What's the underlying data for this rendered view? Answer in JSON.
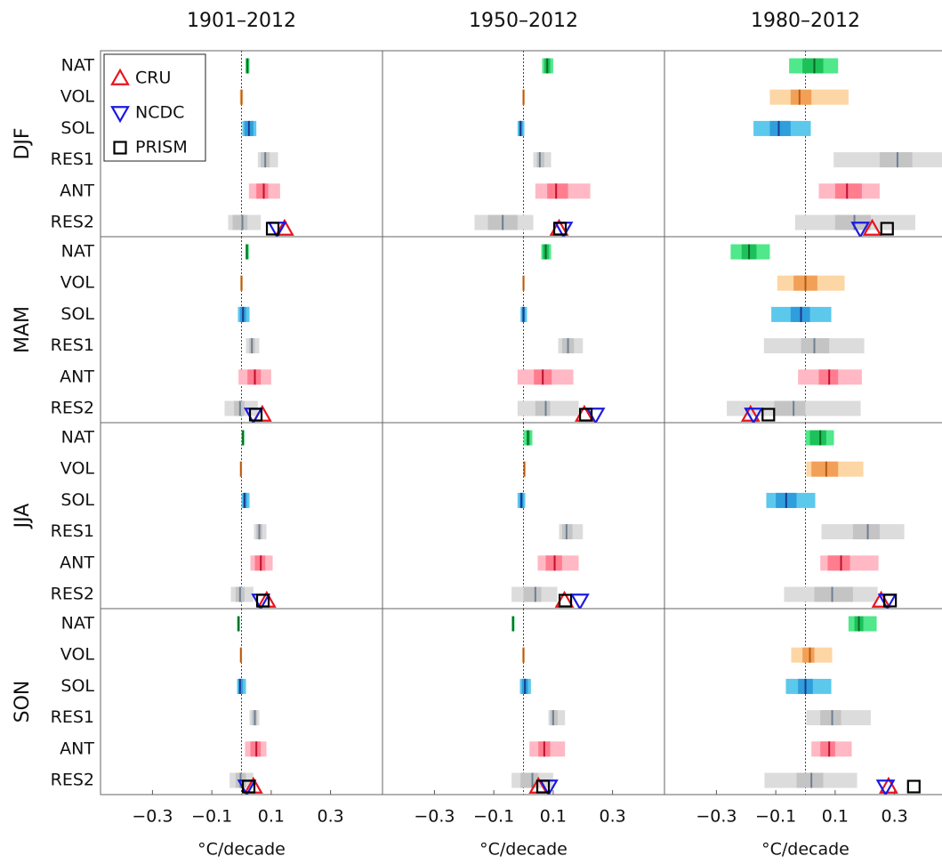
{
  "chart_data": {
    "type": "range",
    "columns": [
      "1901–2012",
      "1950–2012",
      "1980–2012"
    ],
    "rows": [
      "DJF",
      "MAM",
      "JJA",
      "SON"
    ],
    "factors": [
      "NAT",
      "VOL",
      "SOL",
      "RES1",
      "ANT",
      "RES2"
    ],
    "factor_colors": [
      [
        "#4fe88a",
        "#1cc159",
        "#0a6a24"
      ],
      [
        "#fcd6a4",
        "#f2a058",
        "#b85a10"
      ],
      [
        "#5cc8ec",
        "#2e9fdc",
        "#1a3a90"
      ],
      [
        "#dcdcdc",
        "#c4c4c4",
        "#6d7f92"
      ],
      [
        "#ffb8c4",
        "#ff7d8f",
        "#c0102e"
      ],
      [
        "#dcdcdc",
        "#c4c4c4",
        "#6d7f92"
      ]
    ],
    "xlim": [
      -0.475,
      0.475
    ],
    "xticks": [
      {
        "value": -0.3,
        "label": "−0.3"
      },
      {
        "value": -0.1,
        "label": "−0.1"
      },
      0.1,
      0.3
    ],
    "xlabel": "°C/decade",
    "zero_line": true,
    "observations": [
      {
        "name": "CRU",
        "color": "#e8141e",
        "marker": "triangle-up"
      },
      {
        "name": "NCDC",
        "color": "#1a1ae0",
        "marker": "triangle-down"
      },
      {
        "name": "PRISM",
        "color": "#000000",
        "marker": "square"
      }
    ],
    "panels": [
      [
        {
          "ranges": [
            [
              0.013,
              0.016,
              0.02,
              0.024,
              0.027
            ],
            [
              -0.006,
              -0.003,
              0,
              0.003,
              0.006
            ],
            [
              0.003,
              0.01,
              0.025,
              0.04,
              0.05
            ],
            [
              0.055,
              0.065,
              0.08,
              0.095,
              0.123
            ],
            [
              0.025,
              0.05,
              0.075,
              0.09,
              0.13
            ],
            [
              -0.045,
              -0.03,
              0.003,
              0.02,
              0.065
            ]
          ],
          "obs": [
            0.145,
            0.12,
            0.105
          ]
        },
        {
          "ranges": [
            [
              0.063,
              0.07,
              0.08,
              0.09,
              0.1
            ],
            [
              -0.003,
              -0.002,
              0,
              0.002,
              0.005
            ],
            [
              -0.02,
              -0.015,
              -0.01,
              -0.003,
              0.003
            ],
            [
              0.033,
              0.045,
              0.055,
              0.07,
              0.093
            ],
            [
              0.04,
              0.08,
              0.11,
              0.15,
              0.225
            ],
            [
              -0.165,
              -0.12,
              -0.07,
              -0.02,
              0.033
            ]
          ],
          "obs": [
            0.12,
            0.135,
            0.123
          ]
        },
        {
          "ranges": [
            [
              -0.055,
              -0.01,
              0.03,
              0.06,
              0.11
            ],
            [
              -0.12,
              -0.05,
              -0.02,
              0.02,
              0.145
            ],
            [
              -0.175,
              -0.12,
              -0.09,
              -0.05,
              0.018
            ],
            [
              0.095,
              0.25,
              0.31,
              0.36,
              0.49
            ],
            [
              0.045,
              0.1,
              0.14,
              0.19,
              0.25
            ],
            [
              -0.035,
              0.1,
              0.165,
              0.22,
              0.37
            ]
          ],
          "obs": [
            0.225,
            0.185,
            0.275
          ]
        }
      ],
      [
        {
          "ranges": [
            [
              0.013,
              0.015,
              0.018,
              0.022,
              0.025
            ],
            [
              -0.004,
              -0.002,
              0,
              0.002,
              0.004
            ],
            [
              -0.012,
              -0.005,
              0.005,
              0.015,
              0.027
            ],
            [
              0.015,
              0.025,
              0.035,
              0.045,
              0.06
            ],
            [
              -0.01,
              0.02,
              0.045,
              0.065,
              0.1
            ],
            [
              -0.057,
              -0.025,
              -0.005,
              0.01,
              0.055
            ]
          ],
          "obs": [
            0.07,
            0.04,
            0.048
          ]
        },
        {
          "ranges": [
            [
              0.06,
              0.065,
              0.075,
              0.085,
              0.093
            ],
            [
              -0.003,
              -0.002,
              0,
              0.002,
              0.004
            ],
            [
              -0.01,
              -0.005,
              0,
              0.005,
              0.012
            ],
            [
              0.117,
              0.13,
              0.15,
              0.17,
              0.2
            ],
            [
              -0.02,
              0.035,
              0.065,
              0.095,
              0.168
            ],
            [
              -0.02,
              0.04,
              0.075,
              0.09,
              0.186
            ]
          ],
          "obs": [
            0.205,
            0.243,
            0.21
          ]
        },
        {
          "ranges": [
            [
              -0.252,
              -0.215,
              -0.19,
              -0.165,
              -0.12
            ],
            [
              -0.095,
              -0.04,
              0,
              0.04,
              0.132
            ],
            [
              -0.115,
              -0.05,
              -0.015,
              0.015,
              0.087
            ],
            [
              -0.14,
              -0.015,
              0.03,
              0.08,
              0.198
            ],
            [
              -0.025,
              0.045,
              0.08,
              0.11,
              0.19
            ],
            [
              -0.265,
              -0.105,
              -0.04,
              0,
              0.186
            ]
          ],
          "obs": [
            -0.185,
            -0.175,
            -0.125
          ]
        }
      ],
      [
        {
          "ranges": [
            [
              0,
              0.002,
              0.005,
              0.007,
              0.01
            ],
            [
              -0.006,
              -0.004,
              -0.002,
              0,
              0.002
            ],
            [
              0,
              0.005,
              0.01,
              0.018,
              0.027
            ],
            [
              0.042,
              0.05,
              0.06,
              0.07,
              0.084
            ],
            [
              0.03,
              0.045,
              0.065,
              0.08,
              0.105
            ],
            [
              -0.036,
              -0.02,
              -0.005,
              0.01,
              0.04
            ]
          ],
          "obs": [
            0.085,
            0.065,
            0.072
          ]
        },
        {
          "ranges": [
            [
              0,
              0.01,
              0.015,
              0.022,
              0.03
            ],
            [
              0,
              0.001,
              0.003,
              0.005,
              0.007
            ],
            [
              -0.02,
              -0.013,
              -0.007,
              0,
              0.006
            ],
            [
              0.12,
              0.13,
              0.145,
              0.165,
              0.2
            ],
            [
              0.048,
              0.075,
              0.105,
              0.13,
              0.186
            ],
            [
              -0.04,
              0,
              0.04,
              0.06,
              0.114
            ]
          ],
          "obs": [
            0.138,
            0.19,
            0.141
          ]
        },
        {
          "ranges": [
            [
              0,
              0.015,
              0.05,
              0.07,
              0.096
            ],
            [
              0.003,
              0.02,
              0.07,
              0.11,
              0.195
            ],
            [
              -0.132,
              -0.1,
              -0.065,
              -0.03,
              0.033
            ],
            [
              0.054,
              0.16,
              0.21,
              0.25,
              0.333
            ],
            [
              0.05,
              0.075,
              0.12,
              0.15,
              0.246
            ],
            [
              -0.072,
              0.03,
              0.09,
              0.16,
              0.243
            ]
          ],
          "obs": [
            0.255,
            0.276,
            0.285
          ]
        }
      ],
      [
        {
          "ranges": [
            [
              -0.015,
              -0.013,
              -0.01,
              -0.008,
              -0.005
            ],
            [
              -0.006,
              -0.004,
              -0.002,
              0,
              0.002
            ],
            [
              -0.015,
              -0.01,
              -0.005,
              0.005,
              0.015
            ],
            [
              0.027,
              0.035,
              0.045,
              0.052,
              0.06
            ],
            [
              0.012,
              0.03,
              0.05,
              0.065,
              0.084
            ],
            [
              -0.04,
              -0.02,
              -0.003,
              0.015,
              0.04
            ]
          ],
          "obs": [
            0.04,
            0.018,
            0.024
          ]
        },
        {
          "ranges": [
            [
              -0.04,
              -0.038,
              -0.035,
              -0.032,
              -0.03
            ],
            [
              -0.004,
              -0.002,
              0,
              0.002,
              0.004
            ],
            [
              -0.012,
              -0.005,
              0.005,
              0.015,
              0.025
            ],
            [
              0.084,
              0.09,
              0.1,
              0.115,
              0.14
            ],
            [
              0.02,
              0.05,
              0.07,
              0.09,
              0.14
            ],
            [
              -0.04,
              -0.01,
              0.03,
              0.05,
              0.1
            ]
          ],
          "obs": [
            0.05,
            0.085,
            0.066
          ]
        },
        {
          "ranges": [
            [
              0.145,
              0.165,
              0.18,
              0.195,
              0.24
            ],
            [
              -0.048,
              -0.01,
              0.015,
              0.03,
              0.09
            ],
            [
              -0.066,
              -0.025,
              0,
              0.025,
              0.087
            ],
            [
              0.003,
              0.05,
              0.09,
              0.12,
              0.22
            ],
            [
              0.02,
              0.05,
              0.08,
              0.1,
              0.156
            ],
            [
              -0.138,
              -0.03,
              0.02,
              0.06,
              0.174
            ]
          ],
          "obs": [
            0.28,
            0.27,
            0.365
          ]
        }
      ]
    ]
  }
}
